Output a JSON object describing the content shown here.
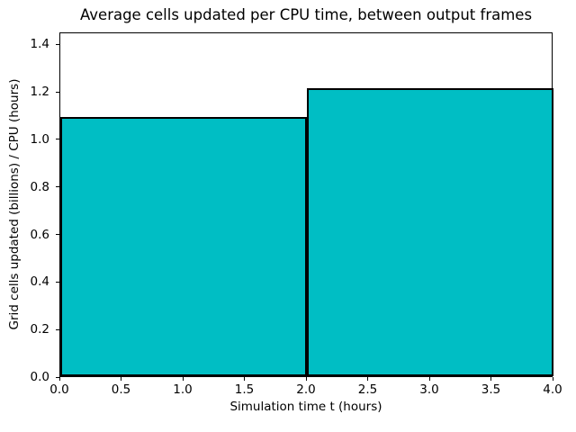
{
  "chart_data": {
    "type": "bar",
    "title": "Average cells updated per CPU time, between output frames",
    "xlabel": "Simulation time t (hours)",
    "ylabel": "Grid cells updated (billions) / CPU (hours)",
    "bars": [
      {
        "x_start": 0.0,
        "x_end": 2.0,
        "value": 1.09
      },
      {
        "x_start": 2.0,
        "x_end": 4.0,
        "value": 1.21
      }
    ],
    "xlim": [
      0.0,
      4.0
    ],
    "ylim": [
      0.0,
      1.45
    ],
    "x_ticks": [
      0.0,
      0.5,
      1.0,
      1.5,
      2.0,
      2.5,
      3.0,
      3.5,
      4.0
    ],
    "y_ticks": [
      0.0,
      0.2,
      0.4,
      0.6,
      0.8,
      1.0,
      1.2,
      1.4
    ],
    "tick_label_decimals": 1,
    "bar_color": "#00BEC4",
    "bar_edge_color": "#000000",
    "frame_color": "#000000",
    "background_color": "#ffffff",
    "grid": false,
    "legend_position": "none"
  }
}
